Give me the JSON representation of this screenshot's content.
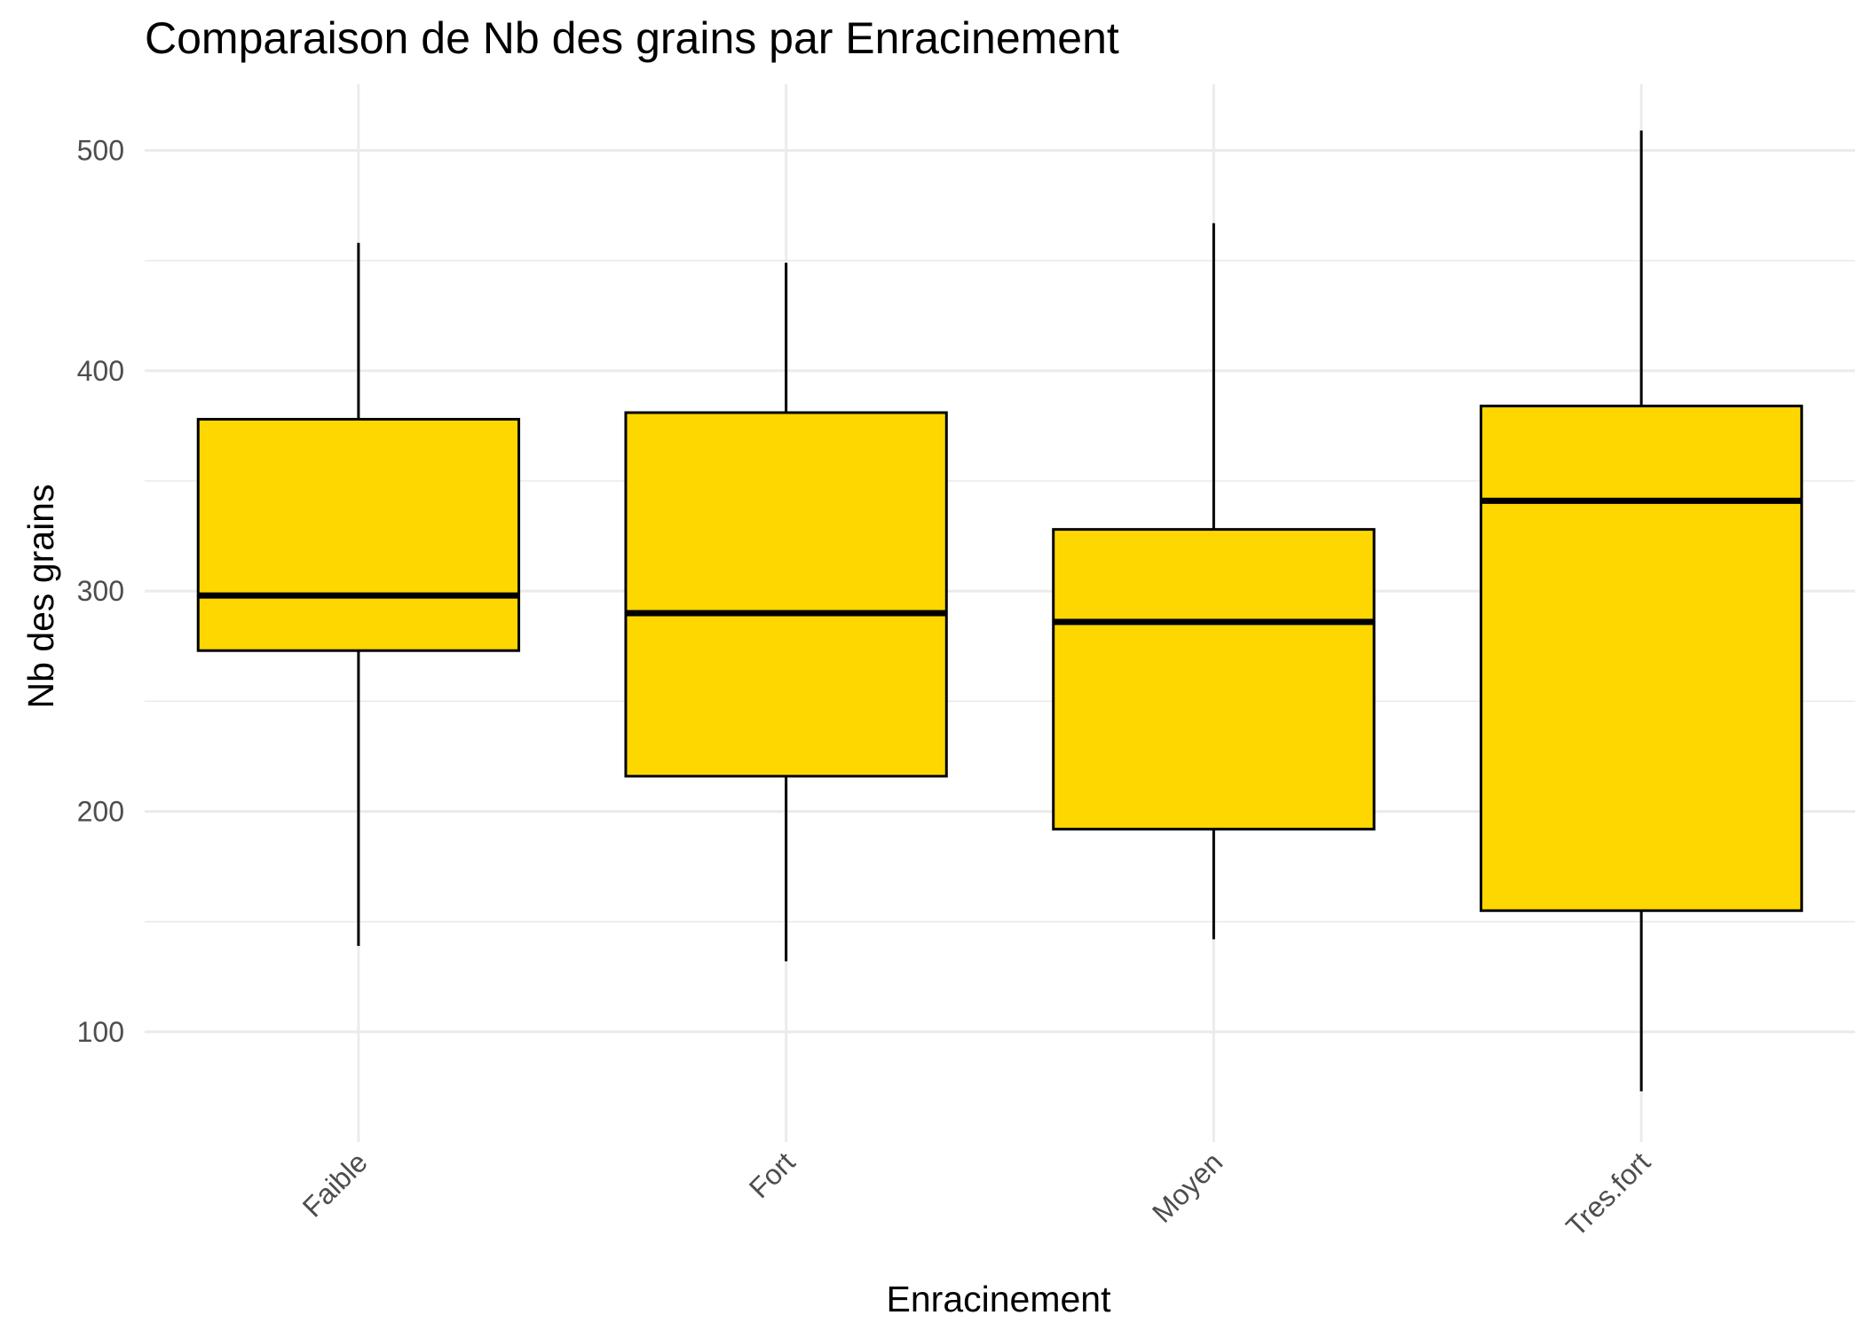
{
  "chart_data": {
    "type": "box",
    "title": "Comparaison de Nb des grains par Enracinement",
    "xlabel": "Enracinement",
    "ylabel": "Nb des grains",
    "categories": [
      "Faible",
      "Fort",
      "Moyen",
      "Tres.fort"
    ],
    "boxes": [
      {
        "category": "Faible",
        "min": 139,
        "q1": 273,
        "median": 298,
        "q3": 378,
        "max": 458
      },
      {
        "category": "Fort",
        "min": 132,
        "q1": 216,
        "median": 290,
        "q3": 381,
        "max": 449
      },
      {
        "category": "Moyen",
        "min": 142,
        "q1": 192,
        "median": 286,
        "q3": 328,
        "max": 467
      },
      {
        "category": "Tres.fort",
        "min": 73,
        "q1": 155,
        "median": 341,
        "q3": 384,
        "max": 509
      }
    ],
    "y_ticks": [
      100,
      200,
      300,
      400,
      500
    ],
    "ylim": [
      50,
      530
    ],
    "grid": true,
    "x_tick_rotation": 45,
    "colors": {
      "box_fill": "#FFD700",
      "box_stroke": "#000000",
      "grid": "#EBEBEB"
    }
  }
}
